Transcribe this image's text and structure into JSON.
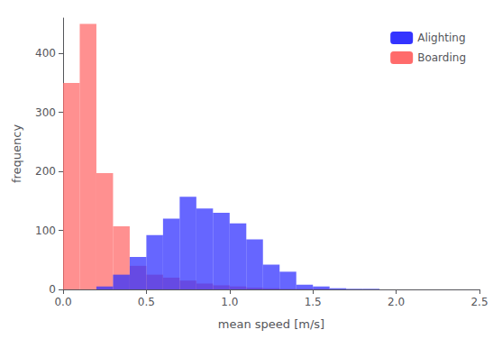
{
  "chart_data": {
    "type": "histogram",
    "xlabel": "mean speed [m/s]",
    "ylabel": "frequency",
    "bins": [
      0.0,
      0.1,
      0.2,
      0.3,
      0.4,
      0.5,
      0.6,
      0.7,
      0.8,
      0.9,
      1.0,
      1.1,
      1.2,
      1.3,
      1.4,
      1.5,
      1.6,
      1.7,
      1.8,
      1.9,
      2.0,
      2.1,
      2.2,
      2.3,
      2.4,
      2.5
    ],
    "series": [
      {
        "name": "Boarding",
        "color": "#FF6B6B",
        "values": [
          350,
          450,
          197,
          107,
          40,
          25,
          20,
          15,
          10,
          7,
          5,
          3,
          2,
          1,
          1,
          1,
          0,
          0,
          0,
          0,
          0,
          0,
          0,
          0,
          0
        ]
      },
      {
        "name": "Alighting",
        "color": "#3333FF",
        "values": [
          0,
          0,
          5,
          25,
          55,
          92,
          120,
          157,
          137,
          130,
          112,
          85,
          42,
          30,
          8,
          5,
          2,
          1,
          1,
          0,
          0,
          0,
          0,
          0,
          0
        ]
      }
    ],
    "xlim": [
      0.0,
      2.5
    ],
    "ylim": [
      0,
      460
    ],
    "xticks": [
      {
        "value": 0.0,
        "label": "0.0"
      },
      {
        "value": 0.5,
        "label": "0.5"
      },
      {
        "value": 1.0,
        "label": "1.0"
      },
      {
        "value": 1.5,
        "label": "1.5"
      },
      {
        "value": 2.0,
        "label": "2.0"
      },
      {
        "value": 2.5,
        "label": "2.5"
      }
    ],
    "yticks": [
      0,
      100,
      200,
      300,
      400
    ],
    "grid": false,
    "legend": "upper right"
  }
}
